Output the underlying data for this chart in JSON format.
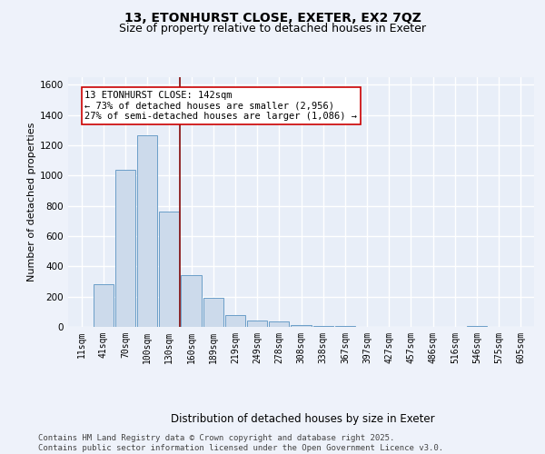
{
  "title_line1": "13, ETONHURST CLOSE, EXETER, EX2 7QZ",
  "title_line2": "Size of property relative to detached houses in Exeter",
  "xlabel": "Distribution of detached houses by size in Exeter",
  "ylabel": "Number of detached properties",
  "bar_values": [
    3,
    280,
    1040,
    1265,
    760,
    340,
    190,
    80,
    40,
    35,
    15,
    8,
    5,
    2,
    2,
    1,
    1,
    1,
    5,
    1,
    3
  ],
  "categories": [
    "11sqm",
    "41sqm",
    "70sqm",
    "100sqm",
    "130sqm",
    "160sqm",
    "189sqm",
    "219sqm",
    "249sqm",
    "278sqm",
    "308sqm",
    "338sqm",
    "367sqm",
    "397sqm",
    "427sqm",
    "457sqm",
    "486sqm",
    "516sqm",
    "546sqm",
    "575sqm",
    "605sqm"
  ],
  "bar_color": "#ccdaeb",
  "bar_edge_color": "#6b9ec8",
  "vline_color": "#8b1a1a",
  "annotation_text": "13 ETONHURST CLOSE: 142sqm\n← 73% of detached houses are smaller (2,956)\n27% of semi-detached houses are larger (1,086) →",
  "annotation_box_color": "#cc0000",
  "ylim": [
    0,
    1650
  ],
  "yticks": [
    0,
    200,
    400,
    600,
    800,
    1000,
    1200,
    1400,
    1600
  ],
  "footer_text": "Contains HM Land Registry data © Crown copyright and database right 2025.\nContains public sector information licensed under the Open Government Licence v3.0.",
  "bg_color": "#eef2fa",
  "plot_bg_color": "#e8eef8",
  "grid_color": "#ffffff",
  "title_fontsize": 10,
  "subtitle_fontsize": 9,
  "xlabel_fontsize": 8.5,
  "ylabel_fontsize": 8,
  "tick_fontsize": 7,
  "footer_fontsize": 6.5,
  "ann_fontsize": 7.5
}
